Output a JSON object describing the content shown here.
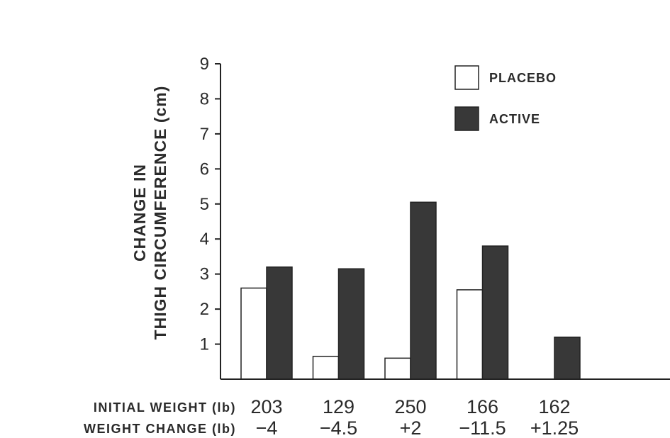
{
  "chart_data": {
    "type": "bar",
    "ylabel_line1": "CHANGE IN",
    "ylabel_line2": "THIGH CIRCUMFERENCE (cm)",
    "ylim": [
      0,
      9
    ],
    "yticks": [
      1,
      2,
      3,
      4,
      5,
      6,
      7,
      8,
      9
    ],
    "grid": false,
    "legend_position": "top-right",
    "categories": [
      "1",
      "2",
      "3",
      "4",
      "5"
    ],
    "series": [
      {
        "name": "PLACEBO",
        "color": "#ffffff",
        "values": [
          2.6,
          0.65,
          0.6,
          2.55,
          0
        ]
      },
      {
        "name": "ACTIVE",
        "color": "#383838",
        "values": [
          3.2,
          3.15,
          5.05,
          3.8,
          1.2
        ]
      }
    ],
    "rows": [
      {
        "label": "INITIAL WEIGHT (lb)",
        "values": [
          "203",
          "129",
          "250",
          "166",
          "162"
        ]
      },
      {
        "label": "WEIGHT CHANGE (lb)",
        "values": [
          "−4",
          "−4.5",
          "+2",
          "−11.5",
          "+1.25"
        ]
      }
    ]
  }
}
